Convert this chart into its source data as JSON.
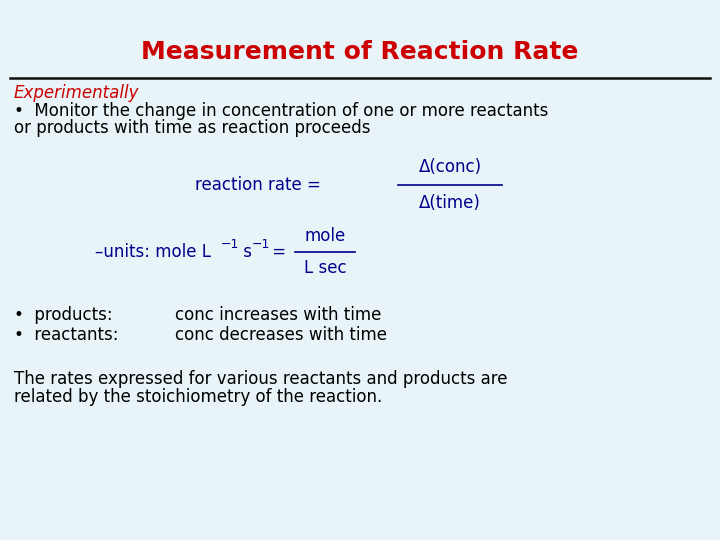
{
  "title": "Measurement of Reaction Rate",
  "title_color": "#cc0000",
  "title_fontsize": 18,
  "background_color": "#e8f4f8",
  "line_color": "#111111",
  "experimentally_text": "Experimentally",
  "experimentally_color": "#cc0000",
  "experimentally_fontsize": 12,
  "bullet1_line1": "•  Monitor the change in concentration of one or more reactants",
  "bullet1_line2": "or products with time as reaction proceeds",
  "bullet1_color": "#000000",
  "bullet1_fontsize": 12,
  "formula_label": "reaction rate = ",
  "formula_color": "#00008b",
  "formula_fontsize": 12,
  "numerator": "Δ(conc)",
  "denominator": "Δ(time)",
  "units_color": "#00008b",
  "units_fontsize": 12,
  "units_num": "mole",
  "units_den": "L sec",
  "bullet_color": "#000000",
  "bullet_fontsize": 12,
  "footer_color": "#000000",
  "footer_fontsize": 12,
  "footer_line1": "The rates expressed for various reactants and products are",
  "footer_line2": "related by the stoichiometry of the reaction."
}
